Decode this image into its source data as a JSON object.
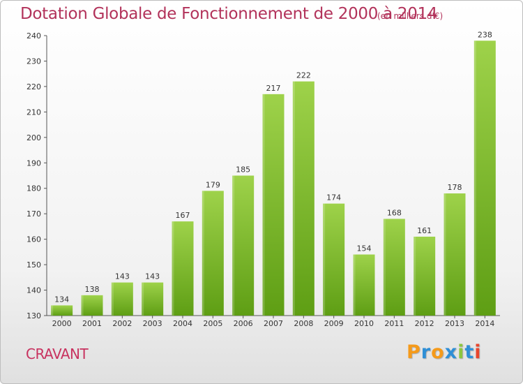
{
  "chart_data": {
    "type": "bar",
    "title": "Dotation Globale de Fonctionnement de 2000 à 2014",
    "subtitle": "(en milliers d'€)",
    "categories": [
      "2000",
      "2001",
      "2002",
      "2003",
      "2004",
      "2005",
      "2006",
      "2007",
      "2008",
      "2009",
      "2010",
      "2011",
      "2012",
      "2013",
      "2014"
    ],
    "values": [
      134,
      138,
      143,
      143,
      167,
      179,
      185,
      217,
      222,
      174,
      154,
      168,
      161,
      178,
      238
    ],
    "ylim": [
      130,
      240
    ],
    "yticks": [
      130,
      140,
      150,
      160,
      170,
      180,
      190,
      200,
      210,
      220,
      230,
      240
    ],
    "grid": false,
    "bar_color": "#7cbc2a"
  },
  "commune": "CRAVANT",
  "logo": {
    "letters": [
      "P",
      "r",
      "o",
      "x",
      "i",
      "t",
      "i"
    ],
    "colors": [
      "#f59a1a",
      "#2f8fd6",
      "#f59a1a",
      "#2f8fd6",
      "#8cc63f",
      "#2f8fd6",
      "#e8452c"
    ]
  }
}
